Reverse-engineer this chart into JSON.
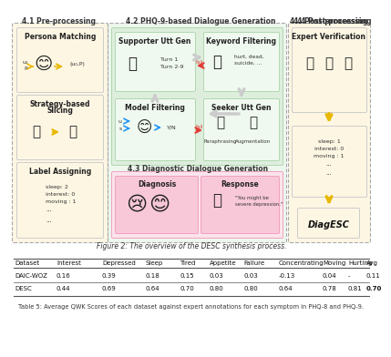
{
  "figure_caption": "Figure 2: The overview of the DESC synthesis process.",
  "table_caption": "Table 5: Average QWK Scores of each dataset against expert annotations for each symptom in PHQ-8 and PHQ-9.",
  "table_headers": [
    "Dataset",
    "Interest",
    "Depressed",
    "Sleep",
    "Tired",
    "Appetite",
    "Failure",
    "Concentrating",
    "Moving",
    "Hurting",
    "Avg"
  ],
  "table_rows": [
    [
      "DAIC-WOZ",
      "0.16",
      "0.39",
      "0.18",
      "0.15",
      "0.03",
      "0.03",
      "-0.13",
      "0.04",
      "-",
      "0.11"
    ],
    [
      "DESC",
      "0.44",
      "0.69",
      "0.64",
      "0.70",
      "0.80",
      "0.80",
      "0.64",
      "0.78",
      "0.81",
      "0.70"
    ]
  ],
  "bg_color": "#ffffff",
  "section_41_color": "#fdf6e3",
  "section_42_color": "#edf7ed",
  "section_43_color": "#fdedf3",
  "section_44_color": "#fdf6e3",
  "inner_box_color": "#ddeedd",
  "sub_box_light": "#f0f9f0",
  "pink_box": "#fce4ec",
  "pink_inner": "#f8c8d8",
  "yellow_arrow": "#e8b800",
  "red_arrow": "#e53935",
  "white_arrow": "#e0e0e0",
  "blue_arrow": "#2196F3",
  "text_dark": "#222222",
  "dashed_edge": "#aaaaaa",
  "solid_edge": "#cccccc"
}
